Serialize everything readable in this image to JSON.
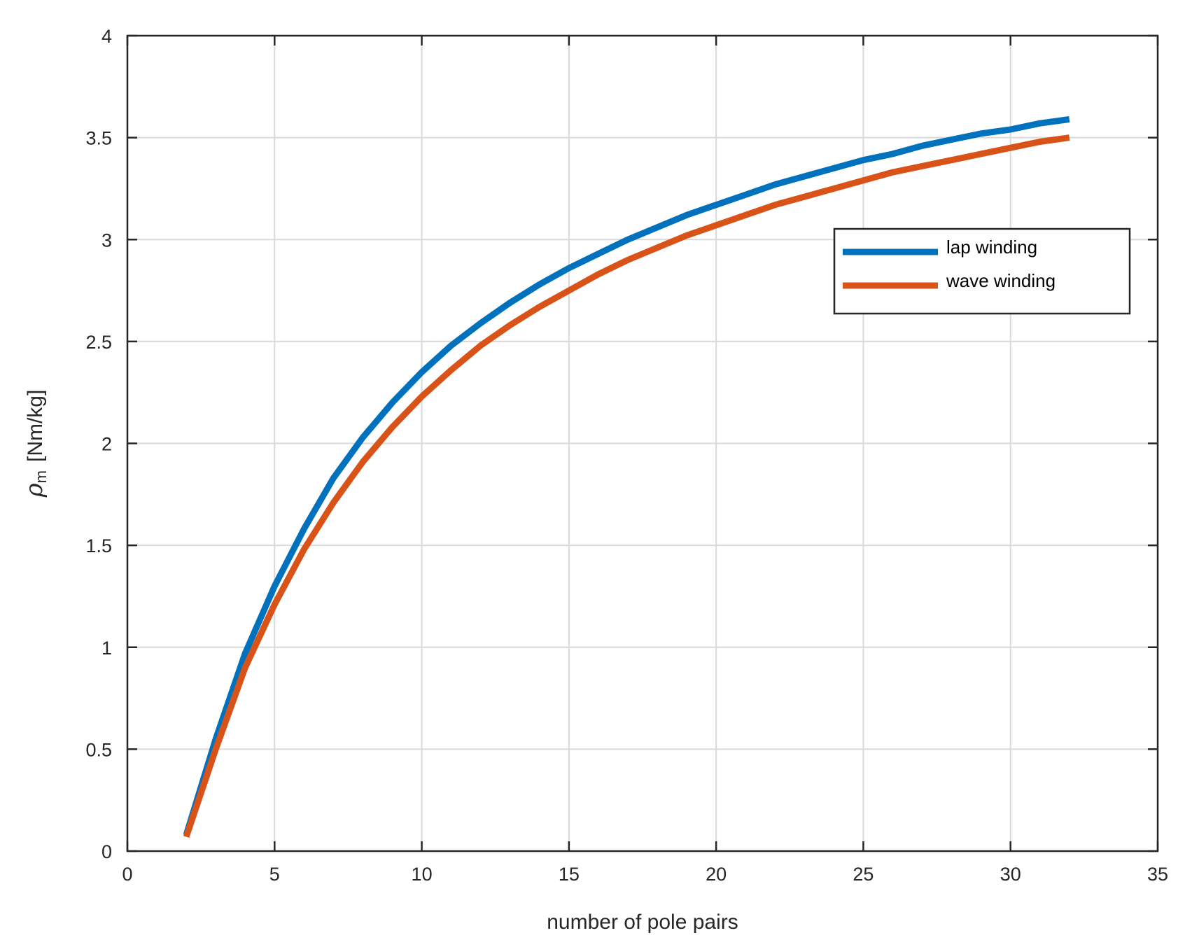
{
  "chart_data": {
    "type": "line",
    "xlabel": "number of pole pairs",
    "ylabel": {
      "symbol": "ρ",
      "subscript": "m",
      "unit": "[Nm/kg]"
    },
    "xlim": [
      0,
      35
    ],
    "ylim": [
      0,
      4
    ],
    "xticks": [
      0,
      5,
      10,
      15,
      20,
      25,
      30,
      35
    ],
    "yticks": [
      0,
      0.5,
      1,
      1.5,
      2,
      2.5,
      3,
      3.5,
      4
    ],
    "xtick_labels": [
      "0",
      "5",
      "10",
      "15",
      "20",
      "25",
      "30",
      "35"
    ],
    "ytick_labels": [
      "0",
      "0.5",
      "1",
      "1.5",
      "2",
      "2.5",
      "3",
      "3.5",
      "4"
    ],
    "grid": true,
    "legend_position": "upper-right",
    "x": [
      2,
      3,
      4,
      5,
      6,
      7,
      8,
      9,
      10,
      11,
      12,
      13,
      14,
      15,
      16,
      17,
      18,
      19,
      20,
      21,
      22,
      23,
      24,
      25,
      26,
      27,
      28,
      29,
      30,
      31,
      32
    ],
    "series": [
      {
        "name": "lap winding",
        "color": "#0072BD",
        "values": [
          0.08,
          0.55,
          0.97,
          1.3,
          1.58,
          1.83,
          2.03,
          2.2,
          2.35,
          2.48,
          2.59,
          2.69,
          2.78,
          2.86,
          2.93,
          3.0,
          3.06,
          3.12,
          3.17,
          3.22,
          3.27,
          3.31,
          3.35,
          3.39,
          3.42,
          3.46,
          3.49,
          3.52,
          3.54,
          3.57,
          3.59
        ]
      },
      {
        "name": "wave winding",
        "color": "#D95319",
        "values": [
          0.07,
          0.5,
          0.9,
          1.21,
          1.48,
          1.71,
          1.91,
          2.08,
          2.23,
          2.36,
          2.48,
          2.58,
          2.67,
          2.75,
          2.83,
          2.9,
          2.96,
          3.02,
          3.07,
          3.12,
          3.17,
          3.21,
          3.25,
          3.29,
          3.33,
          3.36,
          3.39,
          3.42,
          3.45,
          3.48,
          3.5
        ]
      }
    ]
  }
}
